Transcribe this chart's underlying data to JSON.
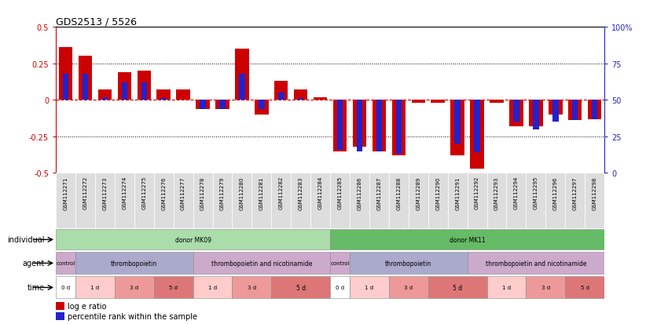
{
  "title": "GDS2513 / 5526",
  "samples": [
    "GSM112271",
    "GSM112272",
    "GSM112273",
    "GSM112274",
    "GSM112275",
    "GSM112276",
    "GSM112277",
    "GSM112278",
    "GSM112279",
    "GSM112280",
    "GSM112281",
    "GSM112282",
    "GSM112283",
    "GSM112284",
    "GSM112285",
    "GSM112286",
    "GSM112287",
    "GSM112288",
    "GSM112289",
    "GSM112290",
    "GSM112291",
    "GSM112292",
    "GSM112293",
    "GSM112294",
    "GSM112295",
    "GSM112296",
    "GSM112297",
    "GSM112298"
  ],
  "log_e_ratio": [
    0.36,
    0.3,
    0.07,
    0.19,
    0.2,
    0.07,
    0.07,
    -0.06,
    -0.06,
    0.35,
    -0.1,
    0.13,
    0.07,
    0.02,
    -0.35,
    -0.32,
    -0.35,
    -0.38,
    -0.02,
    -0.02,
    -0.38,
    -0.47,
    -0.02,
    -0.18,
    -0.18,
    -0.1,
    -0.14,
    -0.13
  ],
  "percentile_rank": [
    68,
    68,
    52,
    62,
    62,
    51,
    50,
    44,
    44,
    68,
    44,
    55,
    51,
    50,
    16,
    15,
    15,
    13,
    50,
    50,
    20,
    14,
    50,
    35,
    30,
    35,
    36,
    37
  ],
  "ylim": [
    -0.5,
    0.5
  ],
  "yticks": [
    -0.5,
    -0.25,
    0,
    0.25,
    0.5
  ],
  "right_yticks": [
    0,
    25,
    50,
    75,
    100
  ],
  "bar_color_red": "#cc0000",
  "bar_color_blue": "#2222cc",
  "hline_color": "#cc0000",
  "grid_color": "#000000",
  "individual_row": [
    {
      "label": "donor MK09",
      "start": 0,
      "end": 14,
      "color": "#aaddaa"
    },
    {
      "label": "donor MK11",
      "start": 14,
      "end": 28,
      "color": "#66bb66"
    }
  ],
  "agent_row": [
    {
      "label": "control",
      "start": 0,
      "end": 1,
      "color": "#ccaacc"
    },
    {
      "label": "thrombopoietin",
      "start": 1,
      "end": 7,
      "color": "#aaaacc"
    },
    {
      "label": "thrombopoietin and nicotinamide",
      "start": 7,
      "end": 14,
      "color": "#ccaacc"
    },
    {
      "label": "control",
      "start": 14,
      "end": 15,
      "color": "#ccaacc"
    },
    {
      "label": "thrombopoietin",
      "start": 15,
      "end": 21,
      "color": "#aaaacc"
    },
    {
      "label": "thrombopoietin and nicotinamide",
      "start": 21,
      "end": 28,
      "color": "#ccaacc"
    }
  ],
  "time_row": [
    {
      "label": "0 d",
      "start": 0,
      "end": 1,
      "color": "#ffffff"
    },
    {
      "label": "1 d",
      "start": 1,
      "end": 3,
      "color": "#ffcccc"
    },
    {
      "label": "3 d",
      "start": 3,
      "end": 5,
      "color": "#ee9999"
    },
    {
      "label": "5 d",
      "start": 5,
      "end": 7,
      "color": "#dd7777"
    },
    {
      "label": "1 d",
      "start": 7,
      "end": 9,
      "color": "#ffcccc"
    },
    {
      "label": "3 d",
      "start": 9,
      "end": 11,
      "color": "#ee9999"
    },
    {
      "label": "5 d",
      "start": 11,
      "end": 14,
      "color": "#dd7777"
    },
    {
      "label": "0 d",
      "start": 14,
      "end": 15,
      "color": "#ffffff"
    },
    {
      "label": "1 d",
      "start": 15,
      "end": 17,
      "color": "#ffcccc"
    },
    {
      "label": "3 d",
      "start": 17,
      "end": 19,
      "color": "#ee9999"
    },
    {
      "label": "5 d",
      "start": 19,
      "end": 22,
      "color": "#dd7777"
    },
    {
      "label": "1 d",
      "start": 22,
      "end": 24,
      "color": "#ffcccc"
    },
    {
      "label": "3 d",
      "start": 24,
      "end": 26,
      "color": "#ee9999"
    },
    {
      "label": "5 d",
      "start": 26,
      "end": 28,
      "color": "#dd7777"
    }
  ],
  "legend_labels": [
    "log e ratio",
    "percentile rank within the sample"
  ],
  "legend_colors": [
    "#cc0000",
    "#2222cc"
  ]
}
